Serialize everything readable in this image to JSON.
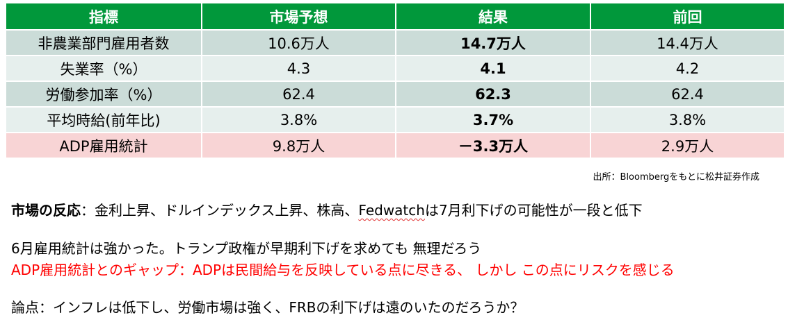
{
  "colors": {
    "header_bg": "#01983b",
    "row_dark": "#cbdcd8",
    "row_light": "#e6efed",
    "row_adp": "#f8d4d5",
    "red_text": "#ff0000"
  },
  "table": {
    "headers": [
      "指標",
      "市場予想",
      "結果",
      "前回"
    ],
    "rows": [
      {
        "indicator": "非農業部門雇用者数",
        "forecast": "10.6万人",
        "result": "14.7万人",
        "previous": "14.4万人"
      },
      {
        "indicator": "失業率（%）",
        "forecast": "4.3",
        "result": "4.1",
        "previous": "4.2"
      },
      {
        "indicator": "労働参加率（%）",
        "forecast": "62.4",
        "result": "62.3",
        "previous": "62.4"
      },
      {
        "indicator": "平均時給(前年比)",
        "forecast": "3.8%",
        "result": "3.7%",
        "previous": "3.8%"
      },
      {
        "indicator": "ADP雇用統計",
        "forecast": "9.8万人",
        "result": "－3.3万人",
        "previous": "2.9万人"
      }
    ]
  },
  "source_note": "出所：Bloombergをもとに松井証券作成",
  "notes": {
    "market_reaction_label": "市場の反応",
    "market_reaction_sep": "：金利上昇、ドルインデックス上昇、株高、",
    "fedwatch": "Fedwatch",
    "market_reaction_tail": "は7月利下げの可能性が一段と低下",
    "employment_comment": "6月雇用統計は強かった。トランプ政権が早期利下げを求めても 無理だろう",
    "adp_gap": "ADP雇用統計とのギャップ：ADPは民間給与を反映している点に尽きる、 しかし この点にリスクを感じる",
    "issue": "論点：インフレは低下し、労働市場は強く、FRBの利下げは遠のいたのだろうか？"
  }
}
